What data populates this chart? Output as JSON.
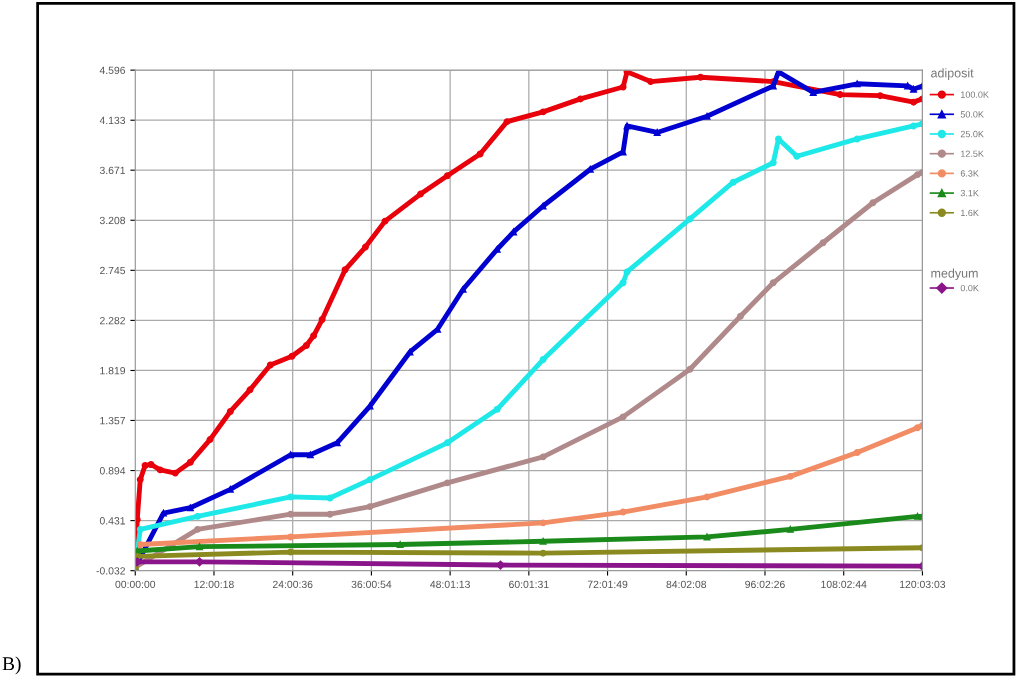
{
  "chart_data": {
    "type": "line",
    "legend_title": "adiposit",
    "annotations": [
      "medyum",
      "B)"
    ],
    "xlim": [
      0,
      120.0508
    ],
    "ylim": [
      -0.032,
      4.596
    ],
    "xticks": [
      {
        "value": 0,
        "label": "00:00:00"
      },
      {
        "value": 12.005,
        "label": "12:00:18"
      },
      {
        "value": 24.01,
        "label": "24:00:36"
      },
      {
        "value": 36.015,
        "label": "36:00:54"
      },
      {
        "value": 48.0203,
        "label": "48:01:13"
      },
      {
        "value": 60.0253,
        "label": "60:01:31"
      },
      {
        "value": 72.0303,
        "label": "72:01:49"
      },
      {
        "value": 84.0356,
        "label": "84:02:08"
      },
      {
        "value": 96.0406,
        "label": "96:02:26"
      },
      {
        "value": 108.0456,
        "label": "108:02:44"
      },
      {
        "value": 120.0508,
        "label": "120:03:03"
      }
    ],
    "yticks": [
      {
        "value": -0.032,
        "label": "-0.032"
      },
      0.431,
      0.894,
      1.357,
      1.819,
      2.282,
      2.745,
      3.208,
      3.671,
      4.133,
      4.596
    ],
    "grid": true,
    "legend": "right",
    "line_style": "solid",
    "series": [
      {
        "name": "100.0K",
        "color": "#e8000b",
        "marker": "circle",
        "x": [
          0,
          0.3,
          0.76,
          1.5,
          2.4,
          3.8,
          6.1,
          8.4,
          11.4,
          14.5,
          17.5,
          20.6,
          23.9,
          26.1,
          27.2,
          28.5,
          32.0,
          35.1,
          38.1,
          43.5,
          47.6,
          52.6,
          56.7,
          62.2,
          67.9,
          74.4,
          75.0,
          78.6,
          86.2,
          97.3,
          107.5,
          113.6,
          118.7,
          120.05
        ],
        "values": [
          0.0,
          0.44,
          0.81,
          0.94,
          0.95,
          0.9,
          0.87,
          0.97,
          1.18,
          1.44,
          1.64,
          1.87,
          1.95,
          2.05,
          2.14,
          2.29,
          2.75,
          2.96,
          3.2,
          3.45,
          3.62,
          3.82,
          4.12,
          4.21,
          4.33,
          4.44,
          4.58,
          4.49,
          4.53,
          4.49,
          4.37,
          4.36,
          4.3,
          4.33
        ]
      },
      {
        "name": "50.0K",
        "color": "#0000d0",
        "marker": "triangle",
        "x": [
          0,
          4.3,
          8.4,
          14.5,
          23.7,
          26.7,
          30.8,
          35.8,
          41.9,
          46.1,
          50.0,
          55.2,
          57.7,
          62.2,
          69.4,
          74.4,
          75.0,
          79.6,
          87.2,
          97.3,
          98.1,
          103.4,
          110.1,
          117.8,
          118.7,
          120.05
        ],
        "values": [
          0.0,
          0.5,
          0.55,
          0.72,
          1.04,
          1.04,
          1.15,
          1.49,
          1.99,
          2.2,
          2.57,
          2.94,
          3.1,
          3.34,
          3.68,
          3.84,
          4.08,
          4.02,
          4.17,
          4.45,
          4.58,
          4.39,
          4.47,
          4.45,
          4.42,
          4.45
        ]
      },
      {
        "name": "25.0K",
        "color": "#1ee8e8",
        "marker": "circle",
        "x": [
          0,
          0.76,
          9.5,
          23.7,
          29.7,
          35.8,
          47.6,
          55.2,
          62.2,
          74.4,
          75.0,
          84.6,
          91.2,
          97.3,
          98.1,
          100.9,
          110.1,
          118.7,
          120.05
        ],
        "values": [
          0.0,
          0.35,
          0.47,
          0.65,
          0.64,
          0.81,
          1.15,
          1.46,
          1.92,
          2.63,
          2.73,
          3.22,
          3.56,
          3.74,
          3.96,
          3.8,
          3.96,
          4.08,
          4.1
        ]
      },
      {
        "name": "12.5K",
        "color": "#b08a8a",
        "marker": "circle",
        "x": [
          0,
          9.5,
          23.7,
          29.7,
          35.8,
          47.6,
          62.2,
          74.4,
          84.6,
          92.3,
          97.3,
          104.9,
          112.5,
          119.3,
          120.05
        ],
        "values": [
          0.0,
          0.35,
          0.49,
          0.49,
          0.56,
          0.78,
          1.02,
          1.39,
          1.83,
          2.32,
          2.63,
          3.0,
          3.37,
          3.63,
          3.65
        ]
      },
      {
        "name": "6.3K",
        "color": "#f28c64",
        "marker": "circle",
        "x": [
          0,
          0.76,
          23.7,
          62.2,
          74.4,
          87.2,
          99.9,
          110.1,
          119.3,
          120.05
        ],
        "values": [
          0.0,
          0.21,
          0.28,
          0.41,
          0.51,
          0.65,
          0.84,
          1.06,
          1.29,
          1.31
        ]
      },
      {
        "name": "3.1K",
        "color": "#1a8a1a",
        "marker": "triangle",
        "x": [
          0,
          0.3,
          9.8,
          40.4,
          62.2,
          87.2,
          99.9,
          119.3,
          120.05
        ],
        "values": [
          0.0,
          0.15,
          0.19,
          0.21,
          0.24,
          0.28,
          0.35,
          0.47,
          0.47
        ]
      },
      {
        "name": "1.6K",
        "color": "#8a8a20",
        "marker": "circle",
        "x": [
          0,
          0.3,
          23.7,
          62.2,
          120.05
        ],
        "values": [
          0.0,
          0.1,
          0.14,
          0.13,
          0.18
        ]
      },
      {
        "name": "0.0K",
        "color": "#8a158a",
        "marker": "diamond",
        "x": [
          0.3,
          9.8,
          55.7,
          120.05
        ],
        "values": [
          0.05,
          0.05,
          0.02,
          0.01
        ]
      }
    ]
  }
}
